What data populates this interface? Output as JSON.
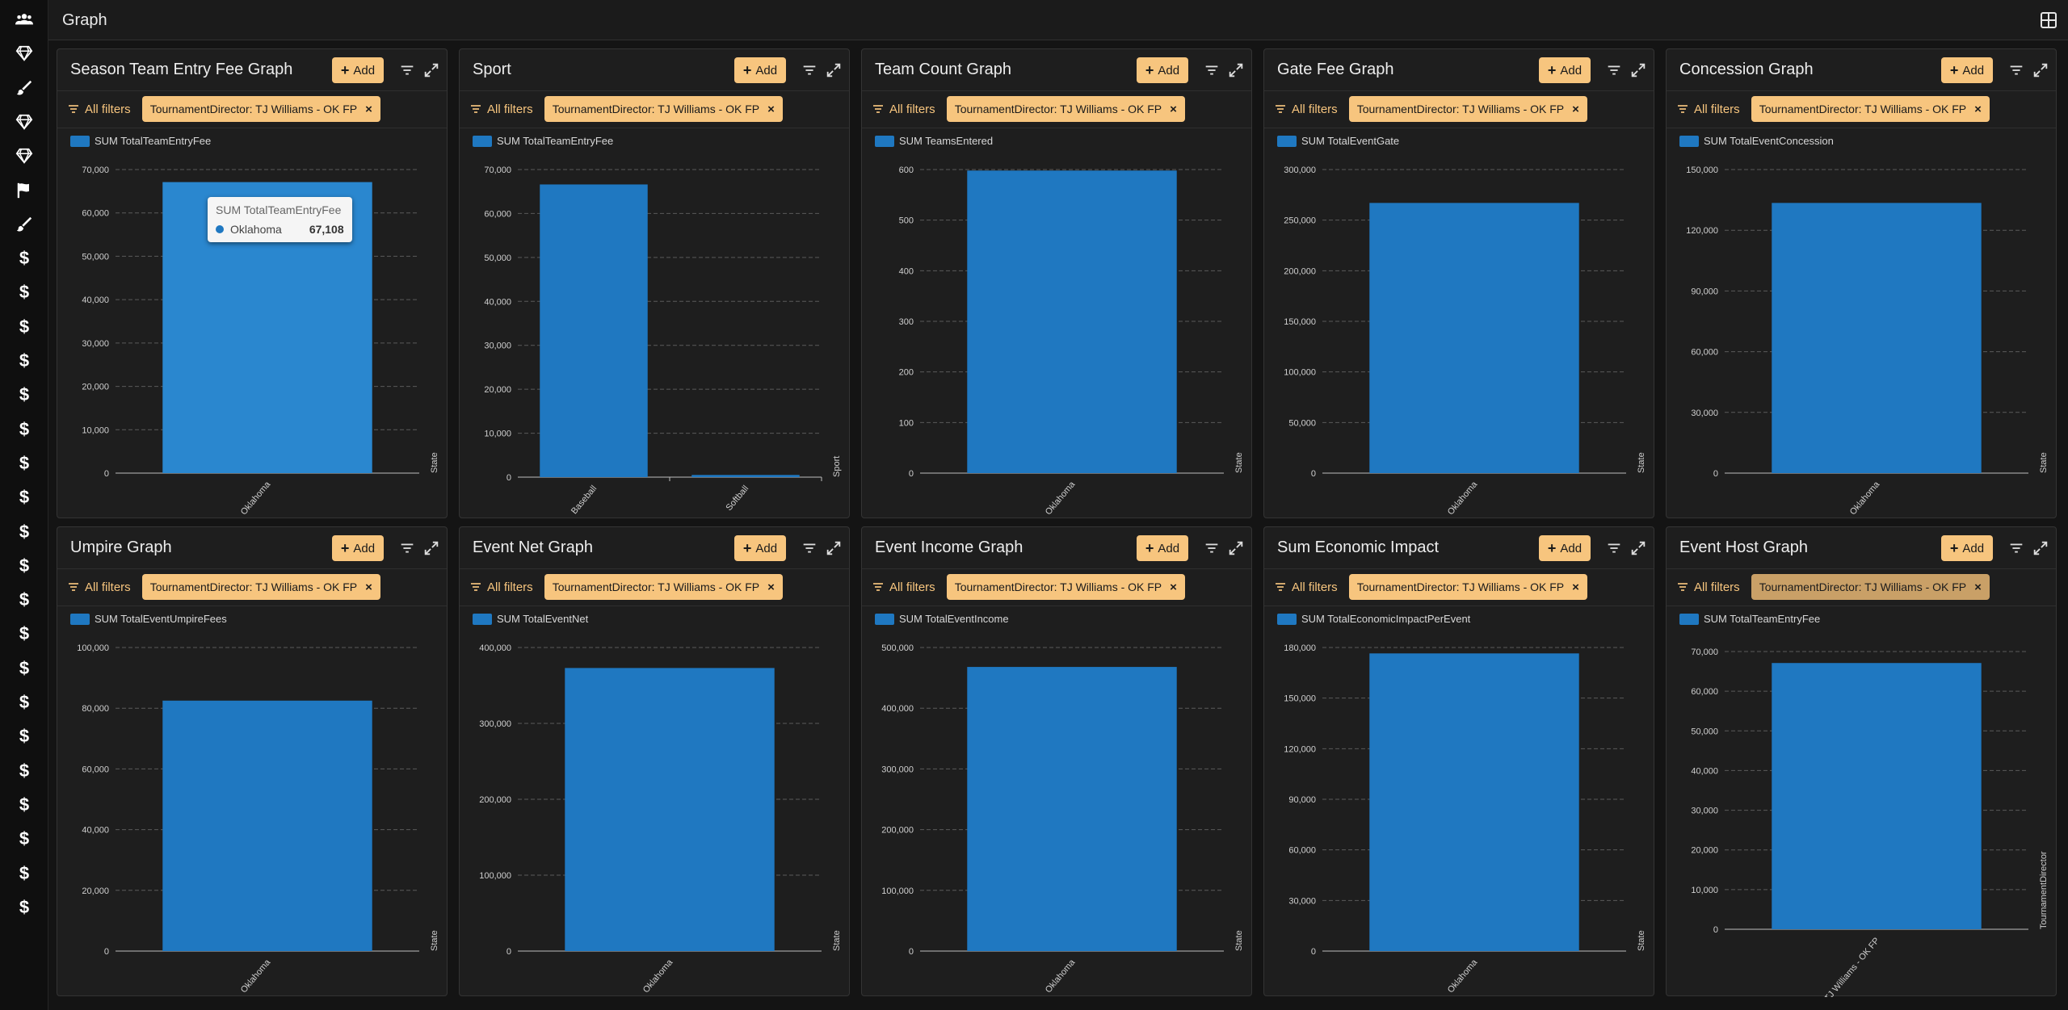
{
  "header": {
    "title": "Graph"
  },
  "sidebar": {
    "icons": [
      "users-icon",
      "gem-icon",
      "brush-icon",
      "gem-icon",
      "gem-icon",
      "flag-icon",
      "brush-icon",
      "dollar-icon",
      "dollar-icon",
      "dollar-icon",
      "dollar-icon",
      "dollar-icon",
      "dollar-icon",
      "dollar-icon",
      "dollar-icon",
      "dollar-icon",
      "dollar-icon",
      "dollar-icon",
      "dollar-icon",
      "dollar-icon",
      "dollar-icon",
      "dollar-icon",
      "dollar-icon",
      "dollar-icon",
      "dollar-icon",
      "dollar-icon",
      "dollar-icon"
    ],
    "dollar_glyph": "$"
  },
  "common": {
    "add_label": "Add",
    "add_plus": "+",
    "all_filters_label": "All filters",
    "filter_chip": "TournamentDirector: TJ Williams - OK FP",
    "chip_close": "×"
  },
  "colors": {
    "accent": "#f7c57e",
    "bar": "#1f78c1",
    "background": "#141414",
    "card": "#1e1e1e"
  },
  "tooltip": {
    "title": "SUM TotalTeamEntryFee",
    "label": "Oklahoma",
    "value": "67,108"
  },
  "cards": [
    {
      "title": "Season Team Entry Fee Graph",
      "legend": "SUM TotalTeamEntryFee"
    },
    {
      "title": "Sport",
      "legend": "SUM TotalTeamEntryFee"
    },
    {
      "title": "Team Count Graph",
      "legend": "SUM TeamsEntered"
    },
    {
      "title": "Gate Fee Graph",
      "legend": "SUM TotalEventGate"
    },
    {
      "title": "Concession Graph",
      "legend": "SUM TotalEventConcession"
    },
    {
      "title": "Umpire Graph",
      "legend": "SUM TotalEventUmpireFees"
    },
    {
      "title": "Event Net Graph",
      "legend": "SUM TotalEventNet"
    },
    {
      "title": "Event Income Graph",
      "legend": "SUM TotalEventIncome"
    },
    {
      "title": "Sum Economic Impact",
      "legend": "SUM TotalEconomicImpactPerEvent"
    },
    {
      "title": "Event Host Graph",
      "legend": "SUM TotalTeamEntryFee"
    }
  ],
  "chart_data": [
    {
      "type": "bar",
      "title": "Season Team Entry Fee Graph",
      "categories": [
        "Oklahoma"
      ],
      "series": [
        {
          "name": "SUM TotalTeamEntryFee",
          "values": [
            67108
          ]
        }
      ],
      "xlabel": "State",
      "ylim": [
        0,
        70000
      ],
      "yticks": [
        "0",
        "10,000",
        "20,000",
        "30,000",
        "40,000",
        "50,000",
        "60,000",
        "70,000"
      ],
      "grid": true,
      "legend": "top-left"
    },
    {
      "type": "bar",
      "title": "Sport",
      "categories": [
        "Baseball",
        "Softball"
      ],
      "series": [
        {
          "name": "SUM TotalTeamEntryFee",
          "values": [
            66608,
            500
          ]
        }
      ],
      "xlabel": "Sport",
      "ylim": [
        0,
        70000
      ],
      "yticks": [
        "0",
        "10,000",
        "20,000",
        "30,000",
        "40,000",
        "50,000",
        "60,000",
        "70,000"
      ],
      "grid": true,
      "legend": "top-left"
    },
    {
      "type": "bar",
      "title": "Team Count Graph",
      "categories": [
        "Oklahoma"
      ],
      "series": [
        {
          "name": "SUM TeamsEntered",
          "values": [
            598
          ]
        }
      ],
      "xlabel": "State",
      "ylim": [
        0,
        600
      ],
      "yticks": [
        "0",
        "100",
        "200",
        "300",
        "400",
        "500",
        "600"
      ],
      "grid": true,
      "legend": "top-left"
    },
    {
      "type": "bar",
      "title": "Gate Fee Graph",
      "categories": [
        "Oklahoma"
      ],
      "series": [
        {
          "name": "SUM TotalEventGate",
          "values": [
            267000
          ]
        }
      ],
      "xlabel": "State",
      "ylim": [
        0,
        300000
      ],
      "yticks": [
        "0",
        "50,000",
        "100,000",
        "150,000",
        "200,000",
        "250,000",
        "300,000"
      ],
      "grid": true,
      "legend": "top-left"
    },
    {
      "type": "bar",
      "title": "Concession Graph",
      "categories": [
        "Oklahoma"
      ],
      "series": [
        {
          "name": "SUM TotalEventConcession",
          "values": [
            133500
          ]
        }
      ],
      "xlabel": "State",
      "ylim": [
        0,
        150000
      ],
      "yticks": [
        "0",
        "30,000",
        "60,000",
        "90,000",
        "120,000",
        "150,000"
      ],
      "grid": true,
      "legend": "top-left"
    },
    {
      "type": "bar",
      "title": "Umpire Graph",
      "categories": [
        "Oklahoma"
      ],
      "series": [
        {
          "name": "SUM TotalEventUmpireFees",
          "values": [
            82500
          ]
        }
      ],
      "xlabel": "State",
      "ylim": [
        0,
        100000
      ],
      "yticks": [
        "0",
        "20,000",
        "40,000",
        "60,000",
        "80,000",
        "100,000"
      ],
      "grid": true,
      "legend": "top-left"
    },
    {
      "type": "bar",
      "title": "Event Net Graph",
      "categories": [
        "Oklahoma"
      ],
      "series": [
        {
          "name": "SUM TotalEventNet",
          "values": [
            373000
          ]
        }
      ],
      "xlabel": "State",
      "ylim": [
        0,
        400000
      ],
      "yticks": [
        "0",
        "100,000",
        "200,000",
        "300,000",
        "400,000"
      ],
      "grid": true,
      "legend": "top-left"
    },
    {
      "type": "bar",
      "title": "Event Income Graph",
      "categories": [
        "Oklahoma"
      ],
      "series": [
        {
          "name": "SUM TotalEventIncome",
          "values": [
            468000
          ]
        }
      ],
      "xlabel": "State",
      "ylim": [
        0,
        500000
      ],
      "yticks": [
        "0",
        "100,000",
        "200,000",
        "300,000",
        "400,000",
        "500,000"
      ],
      "grid": true,
      "legend": "top-left"
    },
    {
      "type": "bar",
      "title": "Sum Economic Impact",
      "categories": [
        "Oklahoma"
      ],
      "series": [
        {
          "name": "SUM TotalEconomicImpactPerEvent",
          "values": [
            176500
          ]
        }
      ],
      "xlabel": "State",
      "ylim": [
        0,
        180000
      ],
      "yticks": [
        "0",
        "30,000",
        "60,000",
        "90,000",
        "120,000",
        "150,000",
        "180,000"
      ],
      "grid": true,
      "legend": "top-left"
    },
    {
      "type": "bar",
      "title": "Event Host Graph",
      "categories": [
        "TJ Williams - OK FP"
      ],
      "series": [
        {
          "name": "SUM TotalTeamEntryFee",
          "values": [
            67108
          ]
        }
      ],
      "xlabel": "TournamentDirector",
      "ylim": [
        0,
        70000
      ],
      "yticks": [
        "0",
        "10,000",
        "20,000",
        "30,000",
        "40,000",
        "50,000",
        "60,000",
        "70,000"
      ],
      "grid": true,
      "legend": "top-left"
    }
  ]
}
